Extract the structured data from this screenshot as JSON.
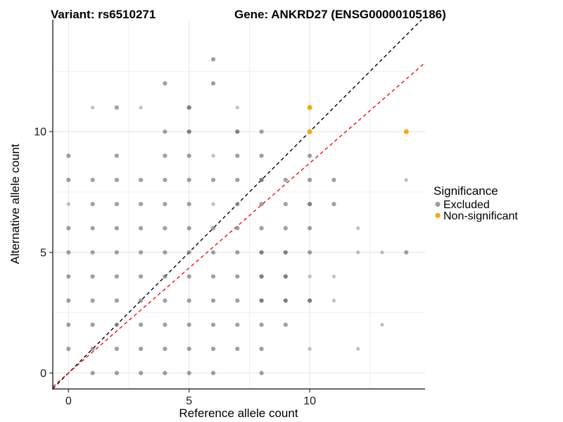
{
  "chart_data": {
    "type": "scatter",
    "title_left": "Variant: rs6510271",
    "title_right": "Gene: ANKRD27 (ENSG00000105186)",
    "xlabel": "Reference allele count",
    "ylabel": "Alternative allele count",
    "xlim": [
      -0.65,
      14.78
    ],
    "ylim": [
      -0.66,
      14.64
    ],
    "x_major_ticks": [
      0,
      5,
      10
    ],
    "y_major_ticks": [
      0,
      5,
      10
    ],
    "x_minor_ticks": [
      2.5,
      7.5,
      12.5
    ],
    "y_minor_ticks": [
      2.5,
      7.5,
      12.5
    ],
    "grid": true,
    "colors": {
      "excluded_base": "#777777",
      "excluded_key": "#9f9f9f",
      "non_significant": "#FFA500",
      "identity_line": "#000000",
      "fit_line": "#ee1111",
      "grid_major": "#e4e4e4",
      "grid_minor": "#f0f0f0",
      "axis": "#333333"
    },
    "legend": {
      "title": "Significance",
      "position": "right",
      "items": [
        {
          "label": "Excluded",
          "color": "#9f9f9f"
        },
        {
          "label": "Non-significant",
          "color": "#FFA500"
        }
      ]
    },
    "lines": [
      {
        "name": "identity",
        "slope": 1.0,
        "intercept": 0.0,
        "color": "#000000",
        "dashed": true
      },
      {
        "name": "fit",
        "slope": 0.87,
        "intercept": 0.0,
        "color": "#ee1111",
        "dashed": true
      }
    ],
    "series": [
      {
        "name": "Excluded",
        "color": "#777777",
        "point_format": "[x, y, opacity]",
        "points": [
          [
            6,
            13,
            0.7
          ],
          [
            4,
            12,
            0.7
          ],
          [
            6,
            12,
            0.7
          ],
          [
            1,
            11,
            0.45
          ],
          [
            2,
            11,
            0.7
          ],
          [
            3,
            11,
            0.45
          ],
          [
            5,
            11,
            0.95
          ],
          [
            7,
            11,
            0.45
          ],
          [
            4,
            10,
            0.7
          ],
          [
            5,
            10,
            0.95
          ],
          [
            7,
            10,
            0.95
          ],
          [
            8,
            10,
            0.7
          ],
          [
            0,
            9,
            0.7
          ],
          [
            2,
            9,
            0.7
          ],
          [
            4,
            9,
            0.7
          ],
          [
            5,
            9,
            0.7
          ],
          [
            6,
            9,
            0.45
          ],
          [
            7,
            9,
            0.7
          ],
          [
            8,
            9,
            0.7
          ],
          [
            10,
            9,
            0.7
          ],
          [
            0,
            8,
            0.7
          ],
          [
            1,
            8,
            0.7
          ],
          [
            2,
            8,
            0.7
          ],
          [
            3,
            8,
            0.7
          ],
          [
            4,
            8,
            0.7
          ],
          [
            5,
            8,
            0.7
          ],
          [
            6,
            8,
            0.7
          ],
          [
            7,
            8,
            0.7
          ],
          [
            8,
            8,
            0.95
          ],
          [
            9,
            8,
            0.7
          ],
          [
            10,
            8,
            0.7
          ],
          [
            11,
            8,
            0.7
          ],
          [
            14,
            8,
            0.45
          ],
          [
            0,
            7,
            0.45
          ],
          [
            1,
            7,
            0.7
          ],
          [
            2,
            7,
            0.7
          ],
          [
            3,
            7,
            0.7
          ],
          [
            4,
            7,
            0.7
          ],
          [
            5,
            7,
            0.7
          ],
          [
            6,
            7,
            0.45
          ],
          [
            7,
            7,
            0.7
          ],
          [
            8,
            7,
            0.7
          ],
          [
            9,
            7,
            0.7
          ],
          [
            10,
            7,
            0.95
          ],
          [
            11,
            7,
            0.7
          ],
          [
            0,
            6,
            0.7
          ],
          [
            1,
            6,
            0.7
          ],
          [
            2,
            6,
            0.7
          ],
          [
            3,
            6,
            0.7
          ],
          [
            4,
            6,
            0.7
          ],
          [
            5,
            6,
            0.7
          ],
          [
            6,
            6,
            0.7
          ],
          [
            7,
            6,
            0.7
          ],
          [
            8,
            6,
            0.7
          ],
          [
            9,
            6,
            0.7
          ],
          [
            10,
            6,
            0.7
          ],
          [
            12,
            6,
            0.45
          ],
          [
            0,
            5,
            0.7
          ],
          [
            1,
            5,
            0.7
          ],
          [
            2,
            5,
            0.7
          ],
          [
            3,
            5,
            0.7
          ],
          [
            4,
            5,
            0.7
          ],
          [
            5,
            5,
            0.7
          ],
          [
            6,
            5,
            0.7
          ],
          [
            7,
            5,
            0.7
          ],
          [
            8,
            5,
            0.95
          ],
          [
            9,
            5,
            0.95
          ],
          [
            10,
            5,
            0.7
          ],
          [
            12,
            5,
            0.45
          ],
          [
            13,
            5,
            0.45
          ],
          [
            14,
            5,
            0.7
          ],
          [
            0,
            4,
            0.7
          ],
          [
            1,
            4,
            0.7
          ],
          [
            2,
            4,
            0.7
          ],
          [
            3,
            4,
            0.7
          ],
          [
            4,
            4,
            0.7
          ],
          [
            5,
            4,
            0.7
          ],
          [
            6,
            4,
            0.7
          ],
          [
            7,
            4,
            0.7
          ],
          [
            8,
            4,
            0.95
          ],
          [
            9,
            4,
            0.95
          ],
          [
            10,
            4,
            0.45
          ],
          [
            11,
            4,
            0.45
          ],
          [
            0,
            3,
            0.7
          ],
          [
            1,
            3,
            0.7
          ],
          [
            2,
            3,
            0.7
          ],
          [
            3,
            3,
            0.7
          ],
          [
            4,
            3,
            0.7
          ],
          [
            5,
            3,
            0.7
          ],
          [
            6,
            3,
            0.7
          ],
          [
            7,
            3,
            0.7
          ],
          [
            8,
            3,
            0.95
          ],
          [
            9,
            3,
            0.95
          ],
          [
            10,
            3,
            0.95
          ],
          [
            11,
            3,
            0.45
          ],
          [
            0,
            2,
            0.7
          ],
          [
            1,
            2,
            0.7
          ],
          [
            2,
            2,
            0.7
          ],
          [
            3,
            2,
            0.7
          ],
          [
            4,
            2,
            0.7
          ],
          [
            5,
            2,
            0.7
          ],
          [
            6,
            2,
            0.7
          ],
          [
            7,
            2,
            0.7
          ],
          [
            8,
            2,
            0.7
          ],
          [
            9,
            2,
            0.7
          ],
          [
            13,
            2,
            0.45
          ],
          [
            0,
            1,
            0.7
          ],
          [
            1,
            1,
            0.7
          ],
          [
            2,
            1,
            0.7
          ],
          [
            3,
            1,
            0.7
          ],
          [
            4,
            1,
            0.7
          ],
          [
            5,
            1,
            0.7
          ],
          [
            6,
            1,
            0.7
          ],
          [
            7,
            1,
            0.7
          ],
          [
            8,
            1,
            0.7
          ],
          [
            10,
            1,
            0.45
          ],
          [
            12,
            1,
            0.45
          ],
          [
            1,
            0,
            0.7
          ],
          [
            2,
            0,
            0.7
          ],
          [
            3,
            0,
            0.7
          ],
          [
            4,
            0,
            0.7
          ],
          [
            5,
            0,
            0.7
          ],
          [
            6,
            0,
            0.7
          ],
          [
            8,
            0,
            0.7
          ]
        ]
      },
      {
        "name": "Non-significant",
        "color": "#FFA500",
        "point_format": "[x, y, opacity]",
        "points": [
          [
            10,
            11,
            1
          ],
          [
            10,
            10,
            1
          ],
          [
            14,
            10,
            1
          ]
        ]
      }
    ]
  }
}
